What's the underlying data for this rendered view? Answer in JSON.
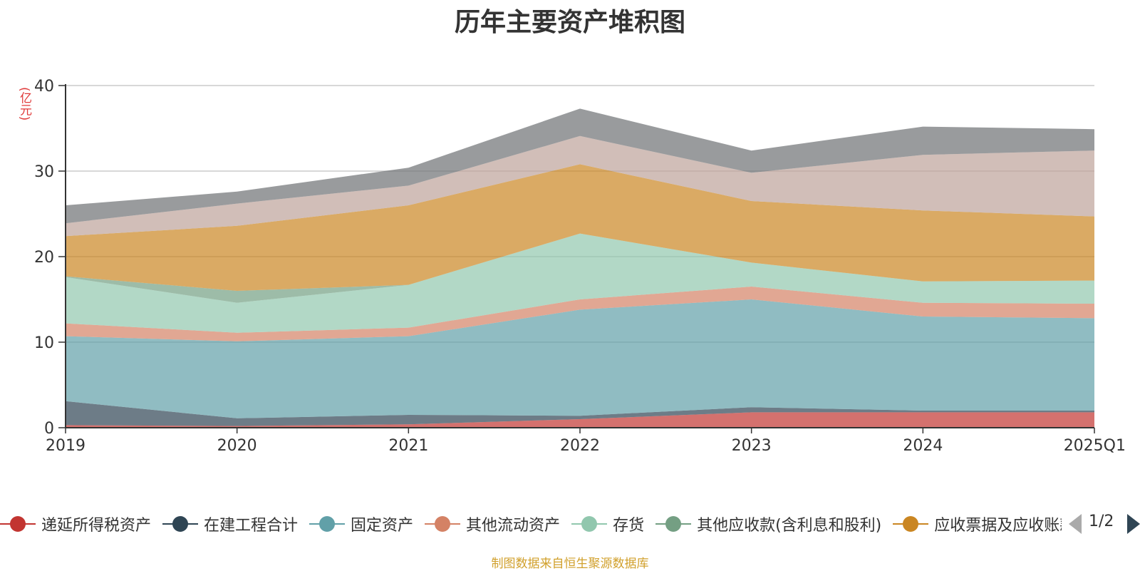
{
  "title": "历年主要资产堆积图",
  "unit_label": "(亿元)",
  "source_note": "制图数据来自恒生聚源数据库",
  "pager": {
    "text": "1/2"
  },
  "legend": [
    {
      "name": "递延所得税资产",
      "color": "#c23531"
    },
    {
      "name": "在建工程合计",
      "color": "#2f4554"
    },
    {
      "name": "固定资产",
      "color": "#61a0a8"
    },
    {
      "name": "其他流动资产",
      "color": "#d48265"
    },
    {
      "name": "存货",
      "color": "#91c7ae"
    },
    {
      "name": "其他应收款(含利息和股利)",
      "color": "#749f83"
    },
    {
      "name": "应收票据及应收账款",
      "color": "#ca8622"
    }
  ],
  "chart_data": {
    "type": "area",
    "stacked": true,
    "categories": [
      "2019",
      "2020",
      "2021",
      "2022",
      "2023",
      "2024",
      "2025Q1"
    ],
    "ylim": [
      0,
      40
    ],
    "yticks": [
      0,
      10,
      20,
      30,
      40
    ],
    "grid": true,
    "legend_position": "bottom",
    "series": [
      {
        "name": "递延所得税资产",
        "color": "#c23531",
        "values": [
          0.3,
          0.2,
          0.4,
          1.0,
          1.8,
          1.8,
          1.8
        ]
      },
      {
        "name": "在建工程合计",
        "color": "#2f4554",
        "values": [
          2.8,
          0.9,
          1.1,
          0.4,
          0.6,
          0.2,
          0.2
        ]
      },
      {
        "name": "固定资产",
        "color": "#61a0a8",
        "values": [
          7.6,
          9.0,
          9.2,
          12.4,
          12.6,
          11.0,
          10.8
        ]
      },
      {
        "name": "其他流动资产",
        "color": "#d48265",
        "values": [
          1.5,
          1.0,
          1.0,
          1.2,
          1.5,
          1.6,
          1.7
        ]
      },
      {
        "name": "存货",
        "color": "#91c7ae",
        "values": [
          5.4,
          3.5,
          5.0,
          7.7,
          2.8,
          2.5,
          2.7
        ]
      },
      {
        "name": "其他应收款(含利息和股利)",
        "color": "#749f83",
        "values": [
          0.1,
          1.4,
          0.0,
          0.0,
          0.0,
          0.0,
          0.0
        ]
      },
      {
        "name": "应收票据及应收账款",
        "color": "#ca8622",
        "values": [
          4.7,
          7.6,
          9.3,
          8.1,
          7.2,
          8.3,
          7.5
        ]
      },
      {
        "name": "",
        "color": "#bda29a",
        "values": [
          1.5,
          2.6,
          2.3,
          3.3,
          3.3,
          6.5,
          7.7
        ]
      },
      {
        "name": "",
        "color": "#6e7074",
        "values": [
          2.1,
          1.4,
          2.1,
          3.2,
          2.6,
          3.3,
          2.5
        ]
      }
    ]
  }
}
